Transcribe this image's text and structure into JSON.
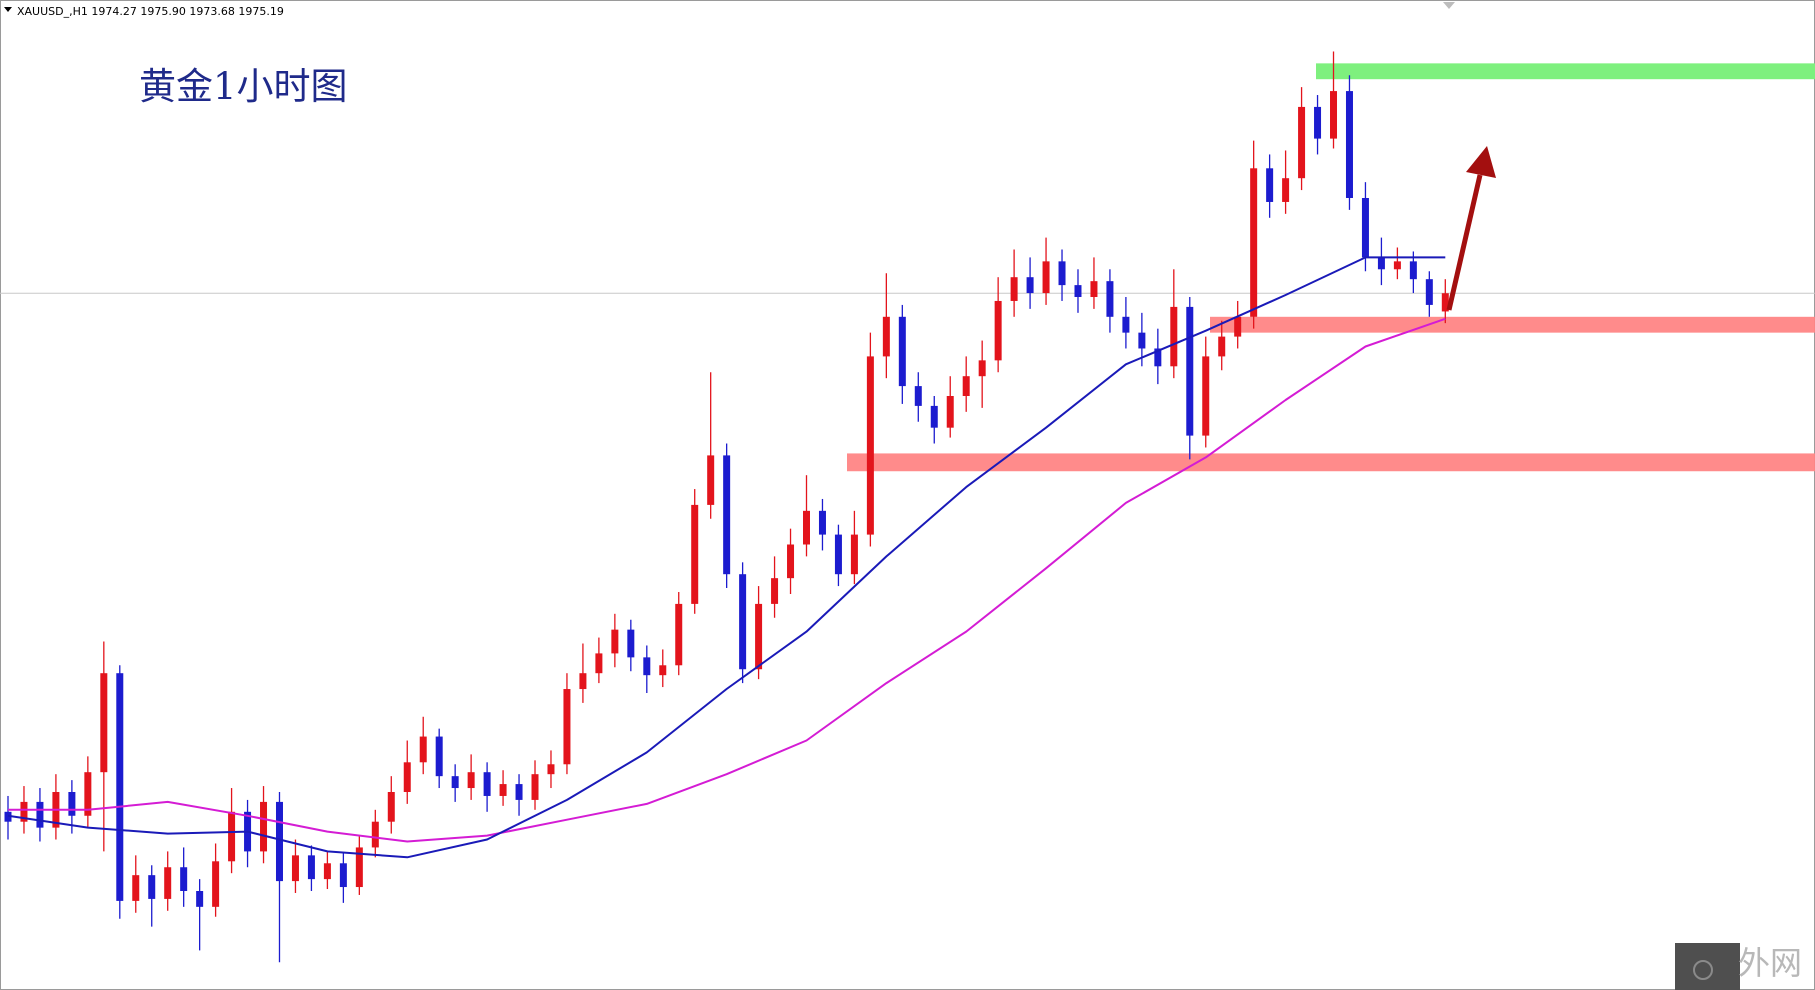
{
  "chart_data": {
    "type": "candlestick",
    "header": "XAUUSD_,H1 1974.27 1975.90 1973.68 1975.19",
    "title": "黄金1小时图",
    "ylim": [
      1940,
      1990
    ],
    "up_color": "#e3141c",
    "down_color": "#1c1ccf",
    "open": [
      1949.0,
      1948.5,
      1949.5,
      1948.2,
      1950.0,
      1948.8,
      1951.0,
      1956.0,
      1944.5,
      1945.8,
      1944.6,
      1946.2,
      1945.0,
      1944.2,
      1946.5,
      1949.0,
      1947.0,
      1949.5,
      1945.5,
      1946.8,
      1945.6,
      1946.4,
      1945.2,
      1947.2,
      1948.5,
      1950.0,
      1951.5,
      1952.8,
      1950.8,
      1950.2,
      1951.0,
      1949.8,
      1950.4,
      1949.6,
      1950.9,
      1951.4,
      1955.2,
      1956.0,
      1957.0,
      1958.2,
      1956.8,
      1955.9,
      1956.4,
      1959.5,
      1964.5,
      1967.0,
      1961.0,
      1956.2,
      1959.5,
      1960.8,
      1962.5,
      1964.2,
      1963.0,
      1961.0,
      1963.0,
      1972.0,
      1974.0,
      1970.5,
      1969.5,
      1968.4,
      1970.0,
      1971.0,
      1971.8,
      1974.8,
      1976.0,
      1975.2,
      1976.8,
      1975.6,
      1975.0,
      1975.8,
      1974.0,
      1973.2,
      1972.4,
      1971.5,
      1974.5,
      1968.0,
      1972.0,
      1973.0,
      1974.0,
      1981.5,
      1979.8,
      1981.0,
      1984.6,
      1983.0,
      1985.4,
      1980.0,
      1977.0,
      1976.4,
      1976.8,
      1975.9,
      1974.27
    ],
    "high": [
      1949.8,
      1950.3,
      1950.2,
      1950.9,
      1950.6,
      1951.8,
      1957.6,
      1956.4,
      1946.8,
      1946.3,
      1947.0,
      1947.2,
      1945.6,
      1947.4,
      1950.2,
      1949.6,
      1950.3,
      1950.0,
      1947.6,
      1947.3,
      1947.0,
      1946.9,
      1947.8,
      1949.1,
      1950.8,
      1952.6,
      1953.8,
      1953.2,
      1951.4,
      1951.9,
      1951.5,
      1951.1,
      1950.9,
      1951.6,
      1952.1,
      1956.0,
      1957.5,
      1957.8,
      1959.0,
      1958.7,
      1957.4,
      1957.2,
      1960.1,
      1965.3,
      1971.2,
      1967.6,
      1961.6,
      1960.4,
      1961.9,
      1963.3,
      1966.0,
      1964.8,
      1963.5,
      1964.2,
      1973.2,
      1976.2,
      1974.6,
      1971.2,
      1970.0,
      1971.0,
      1972.0,
      1972.8,
      1976.0,
      1977.4,
      1977.0,
      1978.0,
      1977.4,
      1976.4,
      1977.0,
      1976.4,
      1975.0,
      1974.2,
      1973.4,
      1976.4,
      1975.0,
      1973.0,
      1973.8,
      1974.8,
      1982.9,
      1982.2,
      1982.4,
      1985.6,
      1985.2,
      1987.4,
      1986.2,
      1980.8,
      1978.0,
      1977.5,
      1977.3,
      1976.3,
      1975.9
    ],
    "low": [
      1947.6,
      1947.9,
      1947.5,
      1947.6,
      1947.9,
      1948.2,
      1947.0,
      1943.6,
      1943.9,
      1943.2,
      1944.0,
      1944.2,
      1942.0,
      1943.7,
      1945.9,
      1946.2,
      1946.4,
      1941.4,
      1944.9,
      1945.0,
      1945.1,
      1944.4,
      1944.8,
      1946.7,
      1947.9,
      1949.4,
      1950.9,
      1950.2,
      1949.5,
      1949.6,
      1949.0,
      1949.3,
      1948.8,
      1949.1,
      1950.2,
      1950.9,
      1954.5,
      1955.5,
      1956.3,
      1956.1,
      1955.0,
      1955.3,
      1955.9,
      1959.0,
      1963.8,
      1960.3,
      1955.5,
      1955.7,
      1958.8,
      1960.0,
      1961.9,
      1962.2,
      1960.4,
      1960.5,
      1962.4,
      1970.9,
      1969.6,
      1968.7,
      1967.6,
      1967.9,
      1969.2,
      1969.4,
      1971.2,
      1974.0,
      1974.4,
      1974.6,
      1974.8,
      1974.2,
      1974.4,
      1973.2,
      1972.4,
      1971.5,
      1970.6,
      1970.9,
      1966.8,
      1967.4,
      1971.3,
      1972.4,
      1973.4,
      1979.0,
      1979.2,
      1980.4,
      1982.2,
      1982.5,
      1979.4,
      1976.3,
      1975.6,
      1975.9,
      1975.2,
      1974.0,
      1973.68
    ],
    "close": [
      1948.5,
      1949.5,
      1948.2,
      1950.0,
      1948.8,
      1951.0,
      1956.0,
      1944.5,
      1945.8,
      1944.6,
      1946.2,
      1945.0,
      1944.2,
      1946.5,
      1949.0,
      1947.0,
      1949.5,
      1945.5,
      1946.8,
      1945.6,
      1946.4,
      1945.2,
      1947.2,
      1948.5,
      1950.0,
      1951.5,
      1952.8,
      1950.8,
      1950.2,
      1951.0,
      1949.8,
      1950.4,
      1949.6,
      1950.9,
      1951.4,
      1955.2,
      1956.0,
      1957.0,
      1958.2,
      1956.8,
      1955.9,
      1956.4,
      1959.5,
      1964.5,
      1967.0,
      1961.0,
      1956.2,
      1959.5,
      1960.8,
      1962.5,
      1964.2,
      1963.0,
      1961.0,
      1963.0,
      1972.0,
      1974.0,
      1970.5,
      1969.5,
      1968.4,
      1970.0,
      1971.0,
      1971.8,
      1974.8,
      1976.0,
      1975.2,
      1976.8,
      1975.6,
      1975.0,
      1975.8,
      1974.0,
      1973.2,
      1972.4,
      1971.5,
      1974.5,
      1968.0,
      1972.0,
      1973.0,
      1974.0,
      1981.5,
      1979.8,
      1981.0,
      1984.6,
      1983.0,
      1985.4,
      1980.0,
      1977.0,
      1976.4,
      1976.8,
      1975.9,
      1974.6,
      1975.19
    ],
    "moving_averages": [
      {
        "color": "#d41cd4",
        "x": [
          0,
          5,
          10,
          15,
          20,
          25,
          30,
          35,
          40,
          45,
          50,
          55,
          60,
          65,
          70,
          75,
          80,
          85,
          90
        ],
        "values": [
          1949.1,
          1949.1,
          1949.5,
          1948.8,
          1948.0,
          1947.5,
          1947.8,
          1948.6,
          1949.4,
          1950.9,
          1952.6,
          1955.5,
          1958.1,
          1961.3,
          1964.6,
          1966.9,
          1969.8,
          1972.5,
          1973.9
        ]
      },
      {
        "color": "#1a1ab8",
        "x": [
          0,
          5,
          10,
          15,
          20,
          25,
          30,
          35,
          40,
          45,
          50,
          55,
          60,
          65,
          70,
          75,
          80,
          85,
          90
        ],
        "values": [
          1948.8,
          1948.2,
          1947.9,
          1948.0,
          1947.0,
          1946.7,
          1947.6,
          1949.6,
          1952.0,
          1955.2,
          1958.1,
          1961.9,
          1965.4,
          1968.4,
          1971.6,
          1973.3,
          1975.1,
          1977.0,
          1977.0
        ]
      }
    ],
    "zones": [
      {
        "color": "#7ef07e",
        "range": [
          1986.0,
          1986.8
        ]
      },
      {
        "color": "#ff8585",
        "range": [
          1973.2,
          1974.0
        ]
      },
      {
        "color": "#ff8585",
        "range": [
          1966.2,
          1967.1
        ]
      }
    ]
  },
  "watermark": "外网"
}
